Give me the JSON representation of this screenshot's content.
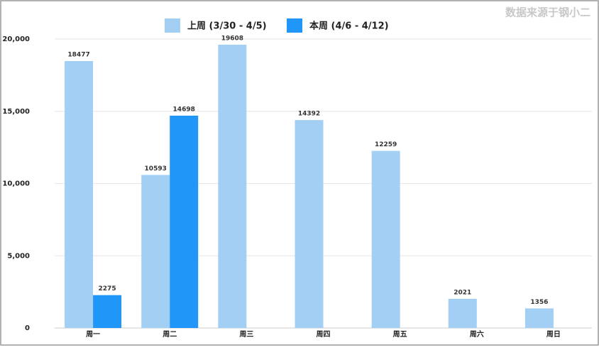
{
  "chart_data": {
    "type": "bar",
    "source": "数据来源于钢小二",
    "categories": [
      "周一",
      "周二",
      "周三",
      "周四",
      "周五",
      "周六",
      "周日"
    ],
    "series": [
      {
        "name": "上周 (3/30 - 4/5)",
        "color": "#a3cff4",
        "values": [
          18477,
          10593,
          19608,
          14392,
          12259,
          2021,
          1356
        ]
      },
      {
        "name": "本周 (4/6 - 4/12)",
        "color": "#2196f9",
        "values": [
          2275,
          14698,
          null,
          null,
          null,
          null,
          null
        ]
      }
    ],
    "ylim": [
      0,
      20000
    ],
    "yticks": [
      0,
      {
        "value": 5000,
        "label": "5,000"
      },
      {
        "value": 10000,
        "label": "10,000"
      },
      {
        "value": 15000,
        "label": "15,000"
      },
      {
        "value": 20000,
        "label": "20,000"
      }
    ],
    "grid": true,
    "legend": "top"
  }
}
